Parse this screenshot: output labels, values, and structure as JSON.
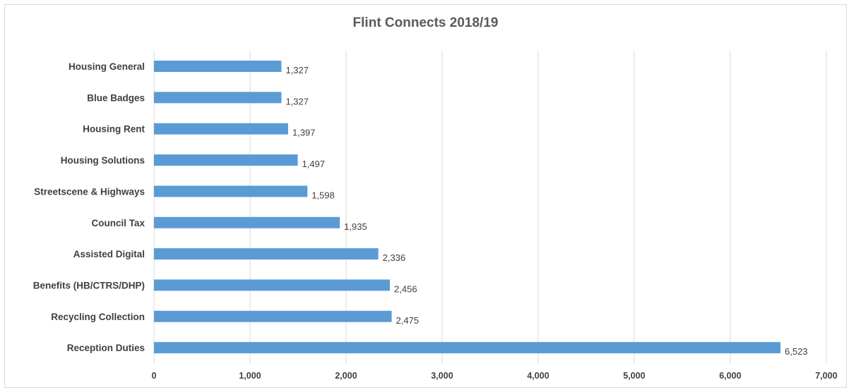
{
  "chart_data": {
    "type": "bar",
    "orientation": "horizontal",
    "title": "Flint Connects 2018/19",
    "xlabel": "",
    "ylabel": "",
    "categories": [
      "Housing General",
      "Blue Badges",
      "Housing Rent",
      "Housing Solutions",
      "Streetscene & Highways",
      "Council Tax",
      "Assisted Digital",
      "Benefits (HB/CTRS/DHP)",
      "Recycling Collection",
      "Reception Duties"
    ],
    "values": [
      1327,
      1327,
      1397,
      1497,
      1598,
      1935,
      2336,
      2456,
      2475,
      6523
    ],
    "data_labels": [
      "1,327",
      "1,327",
      "1,397",
      "1,497",
      "1,598",
      "1,935",
      "2,336",
      "2,456",
      "2,475",
      "6,523"
    ],
    "xlim": [
      0,
      7000
    ],
    "xticks": [
      0,
      1000,
      2000,
      3000,
      4000,
      5000,
      6000,
      7000
    ],
    "xtick_labels": [
      "0",
      "1,000",
      "2,000",
      "3,000",
      "4,000",
      "5,000",
      "6,000",
      "7,000"
    ],
    "grid": true,
    "legend": "none",
    "bar_color": "#5b9bd5"
  }
}
